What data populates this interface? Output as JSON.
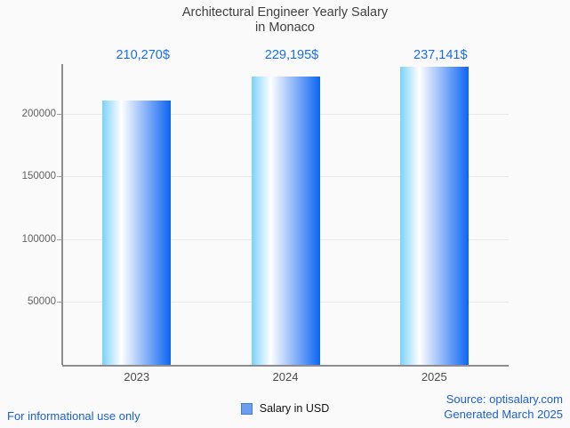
{
  "title": {
    "line1": "Architectural Engineer Yearly Salary",
    "line2": "in Monaco"
  },
  "chart_data": {
    "type": "bar",
    "categories": [
      "2023",
      "2024",
      "2025"
    ],
    "values": [
      210270,
      229195,
      237141
    ],
    "value_labels": [
      "210,270$",
      "229,195$",
      "237,141$"
    ],
    "series": [
      {
        "name": "Salary in USD",
        "values": [
          210270,
          229195,
          237141
        ]
      }
    ],
    "title": "Architectural Engineer Yearly Salary in Monaco",
    "xlabel": "",
    "ylabel": "",
    "y_ticks": [
      50000,
      100000,
      150000,
      200000
    ],
    "y_tick_labels": [
      "50000",
      "100000",
      "150000",
      "200000"
    ],
    "ylim": [
      0,
      240000
    ],
    "grid": true,
    "legend_position": "bottom"
  },
  "legend": {
    "label": "Salary in USD"
  },
  "footer": {
    "left": "For informational use only",
    "source": "Source: optisalary.com",
    "generated": "Generated March 2025"
  },
  "colors": {
    "background": "#fafafa",
    "title_text": "#3f3f3f",
    "value_label": "#1a6dea",
    "footer_text": "#1a5fd9",
    "axis": "#8d8d8d",
    "gridline": "#e9e9e9",
    "tick_label": "#616161",
    "category_label": "#4b4b4b",
    "legend_swatch": "#6d9eeb",
    "legend_swatch_border": "#3f7de0",
    "bar_gradient": [
      "#7dd1fb",
      "#ffffff",
      "#0d65f2"
    ]
  }
}
